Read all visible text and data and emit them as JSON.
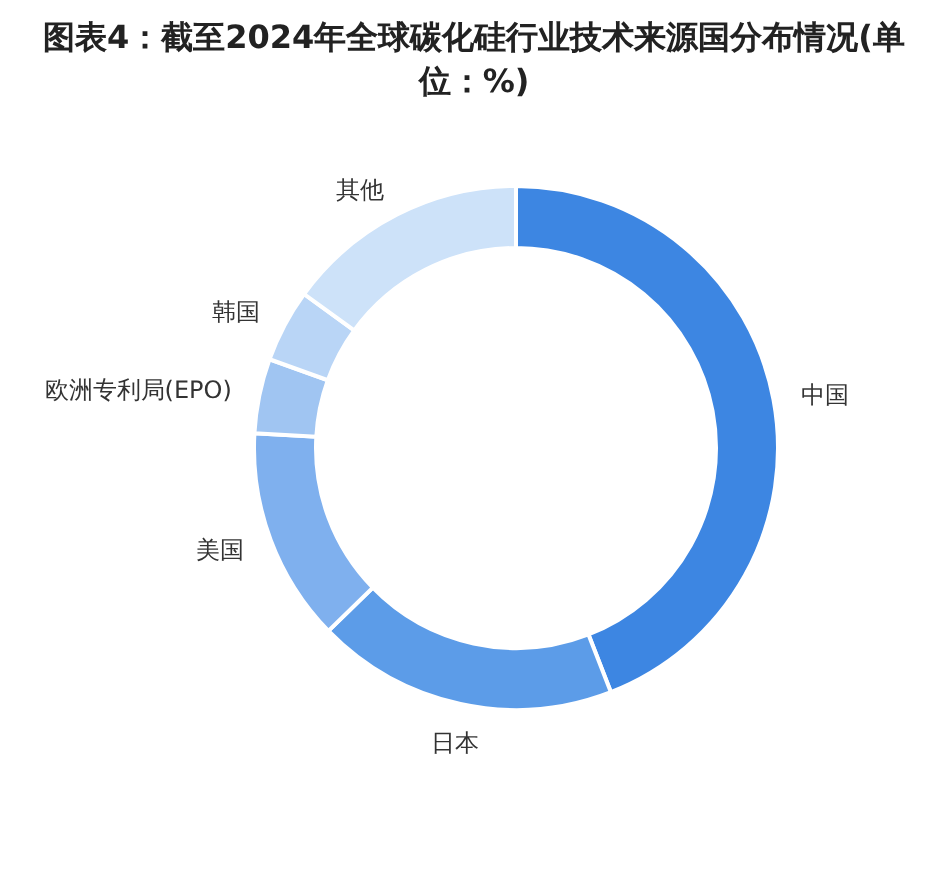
{
  "chart_data": {
    "type": "donut",
    "title": "图表4：截至2024年全球碳化硅行业技术来源国分布情况(单位：%)",
    "categories": [
      "中国",
      "日本",
      "美国",
      "欧洲专利局(EPO)",
      "韩国",
      "其他"
    ],
    "values": [
      44.1,
      18.6,
      13.2,
      4.6,
      4.5,
      15.0
    ],
    "colors": [
      "#3d86e2",
      "#5c9ce8",
      "#7fb0ee",
      "#a0c5f2",
      "#b9d5f6",
      "#cde2f9"
    ]
  }
}
